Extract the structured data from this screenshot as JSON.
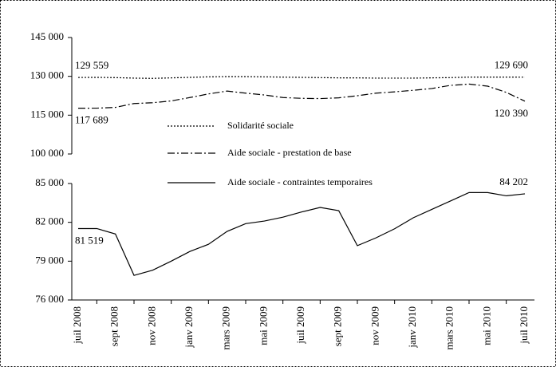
{
  "chart_data": {
    "type": "line",
    "categories": [
      "juil 2008",
      null,
      "sept 2008",
      null,
      "nov 2008",
      null,
      "janv 2009",
      null,
      "mars 2009",
      null,
      "mai 2009",
      null,
      "juil 2009",
      null,
      "sept 2009",
      null,
      "nov 2009",
      null,
      "janv 2010",
      null,
      "mars 2010",
      null,
      "mai 2010",
      null,
      "juil 2010"
    ],
    "panels": [
      {
        "ylim": [
          100000,
          145000
        ],
        "yticks": [
          {
            "value": 100000,
            "label": "100 000"
          },
          {
            "value": 115000,
            "label": "115 000"
          },
          {
            "value": 130000,
            "label": "130 000"
          },
          {
            "value": 145000,
            "label": "145 000"
          }
        ],
        "series": [
          {
            "name": "Solidarité sociale",
            "color": "#000000",
            "line_style": "dotted",
            "values": [
              129559,
              129600,
              129500,
              129300,
              129200,
              129400,
              129600,
              129800,
              129900,
              129900,
              129800,
              129700,
              129600,
              129500,
              129400,
              129400,
              129300,
              129300,
              129300,
              129400,
              129500,
              129700,
              129700,
              129700,
              129690
            ],
            "value_labels": [
              "129 559",
              null,
              null,
              null,
              null,
              null,
              null,
              null,
              null,
              null,
              null,
              null,
              null,
              null,
              null,
              null,
              null,
              null,
              null,
              null,
              null,
              null,
              null,
              null,
              "129 690"
            ]
          },
          {
            "name": "Aide sociale - prestation de base",
            "color": "#000000",
            "line_style": "dashdot",
            "values": [
              117689,
              117700,
              118000,
              119500,
              119800,
              120500,
              121800,
              123200,
              124300,
              123500,
              122800,
              121800,
              121500,
              121400,
              121700,
              122500,
              123500,
              124000,
              124600,
              125300,
              126500,
              127000,
              126200,
              123800,
              120390
            ],
            "value_labels": [
              "117 689",
              null,
              null,
              null,
              null,
              null,
              null,
              null,
              null,
              null,
              null,
              null,
              null,
              null,
              null,
              null,
              null,
              null,
              null,
              null,
              null,
              null,
              null,
              null,
              "120 390"
            ]
          }
        ]
      },
      {
        "ylim": [
          76000,
          85000
        ],
        "yticks": [
          {
            "value": 76000,
            "label": "76 000"
          },
          {
            "value": 79000,
            "label": "79 000"
          },
          {
            "value": 82000,
            "label": "82 000"
          },
          {
            "value": 85000,
            "label": "85 000"
          }
        ],
        "series": [
          {
            "name": "Aide sociale - contraintes temporaires",
            "color": "#000000",
            "line_style": "solid",
            "values": [
              81519,
              81519,
              81100,
              77900,
              78300,
              79000,
              79750,
              80300,
              81300,
              81900,
              82100,
              82400,
              82800,
              83150,
              82900,
              80200,
              80800,
              81500,
              82350,
              83000,
              83650,
              84300,
              84300,
              84050,
              84202
            ],
            "value_labels": [
              "81 519",
              null,
              null,
              null,
              null,
              null,
              null,
              null,
              null,
              null,
              null,
              null,
              null,
              null,
              null,
              null,
              null,
              null,
              null,
              null,
              null,
              null,
              null,
              null,
              "84 202"
            ]
          }
        ]
      }
    ]
  }
}
